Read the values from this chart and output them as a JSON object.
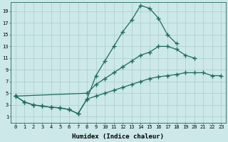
{
  "xlabel": "Humidex (Indice chaleur)",
  "bg_color": "#cce8e8",
  "line_color": "#1e6b5e",
  "grid_color": "#aacccc",
  "xmin": -0.5,
  "xmax": 23.5,
  "ymin": 0,
  "ymax": 20.5,
  "yticks": [
    1,
    3,
    5,
    7,
    9,
    11,
    13,
    15,
    17,
    19
  ],
  "xticks": [
    0,
    1,
    2,
    3,
    4,
    5,
    6,
    7,
    8,
    9,
    10,
    11,
    12,
    13,
    14,
    15,
    16,
    17,
    18,
    19,
    20,
    21,
    22,
    23
  ],
  "line1_x": [
    0,
    1,
    2,
    3,
    4,
    5,
    6,
    7,
    8,
    9,
    10,
    11,
    12,
    13,
    14,
    15,
    16,
    17,
    18,
    19,
    20,
    21,
    22,
    23
  ],
  "line1_y": [
    4.5,
    3.5,
    3.0,
    2.8,
    2.6,
    2.5,
    2.2,
    1.5,
    4.0,
    8.0,
    10.5,
    13.0,
    15.5,
    17.5,
    20.0,
    19.5,
    17.8,
    15.0,
    13.5,
    null,
    null,
    null,
    null,
    null
  ],
  "line2_x": [
    0,
    8,
    9,
    10,
    11,
    12,
    13,
    14,
    15,
    16,
    17,
    18,
    19,
    20,
    21,
    22,
    23
  ],
  "line2_y": [
    4.5,
    5.0,
    6.5,
    7.5,
    8.5,
    9.5,
    10.5,
    11.5,
    12.0,
    13.0,
    13.0,
    12.5,
    11.5,
    11.0,
    null,
    null,
    null
  ],
  "line3_x": [
    0,
    1,
    2,
    3,
    4,
    5,
    6,
    7,
    8,
    9,
    10,
    11,
    12,
    13,
    14,
    15,
    16,
    17,
    18,
    19,
    20,
    21,
    22,
    23
  ],
  "line3_y": [
    4.5,
    3.5,
    3.0,
    2.8,
    2.6,
    2.5,
    2.2,
    1.5,
    4.0,
    4.5,
    5.0,
    5.5,
    6.0,
    6.5,
    7.0,
    7.5,
    7.8,
    8.0,
    8.2,
    8.5,
    8.5,
    8.5,
    8.0,
    8.0
  ]
}
